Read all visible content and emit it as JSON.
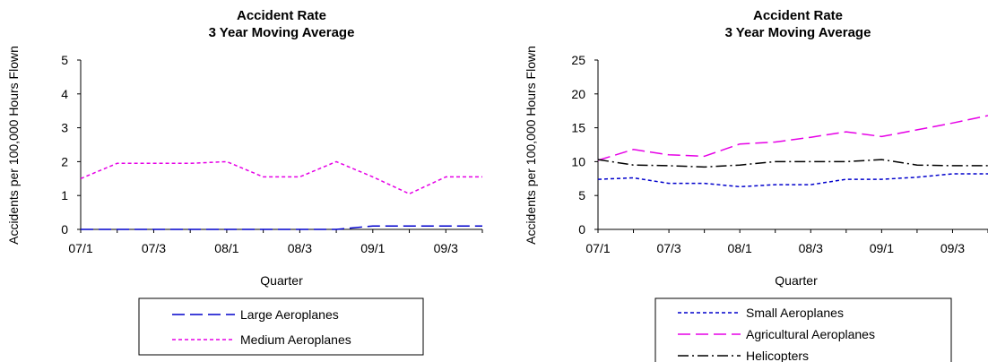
{
  "chart_data": [
    {
      "type": "line",
      "title_lines": [
        "Accident Rate",
        "3 Year Moving Average"
      ],
      "xlabel": "Quarter",
      "ylabel": "Accidents per 100,000 Hours Flown",
      "ylim": [
        0,
        5
      ],
      "yticks": [
        "0",
        "1",
        "2",
        "3",
        "4",
        "5"
      ],
      "tick_labels": [
        "07/1",
        "07/3",
        "08/1",
        "08/3",
        "09/1",
        "09/3"
      ],
      "x": [
        "07/1",
        "07/2",
        "07/3",
        "07/4",
        "08/1",
        "08/2",
        "08/3",
        "08/4",
        "09/1",
        "09/2",
        "09/3",
        "09/4"
      ],
      "legend_position": "bottom",
      "series": [
        {
          "name": "Large Aeroplanes",
          "color": "#0000cc",
          "dash": "long-dash",
          "values": [
            0,
            0,
            0,
            0,
            0,
            0,
            0,
            0,
            0.1,
            0.1,
            0.1,
            0.1
          ]
        },
        {
          "name": "Medium Aeroplanes",
          "color": "#e600e6",
          "dash": "short-dash",
          "values": [
            1.5,
            1.95,
            1.95,
            1.95,
            2.0,
            1.55,
            1.55,
            2.0,
            1.55,
            1.05,
            1.55,
            1.55
          ]
        }
      ]
    },
    {
      "type": "line",
      "title_lines": [
        "Accident Rate",
        "3 Year Moving Average"
      ],
      "xlabel": "Quarter",
      "ylabel": "Accidents per 100,000 Hours Flown",
      "ylim": [
        0,
        25
      ],
      "yticks": [
        "0",
        "5",
        "10",
        "15",
        "20",
        "25"
      ],
      "tick_labels": [
        "07/1",
        "07/3",
        "08/1",
        "08/3",
        "09/1",
        "09/3"
      ],
      "x": [
        "07/1",
        "07/2",
        "07/3",
        "07/4",
        "08/1",
        "08/2",
        "08/3",
        "08/4",
        "09/1",
        "09/2",
        "09/3",
        "09/4"
      ],
      "legend_position": "bottom",
      "series": [
        {
          "name": "Small Aeroplanes",
          "color": "#0000cc",
          "dash": "short-dash",
          "values": [
            7.4,
            7.6,
            6.8,
            6.8,
            6.3,
            6.6,
            6.6,
            7.4,
            7.4,
            7.7,
            8.2,
            8.2
          ]
        },
        {
          "name": "Agricultural Aeroplanes",
          "color": "#e600e6",
          "dash": "long-dash",
          "values": [
            10.2,
            11.8,
            11.0,
            10.8,
            12.6,
            12.9,
            13.6,
            14.4,
            13.7,
            14.7,
            15.7,
            16.8
          ]
        },
        {
          "name": "Helicopters",
          "color": "#000000",
          "dash": "dash-dot",
          "values": [
            10.3,
            9.5,
            9.4,
            9.2,
            9.5,
            10.0,
            10.0,
            10.0,
            10.3,
            9.5,
            9.4,
            9.4
          ]
        }
      ]
    }
  ]
}
